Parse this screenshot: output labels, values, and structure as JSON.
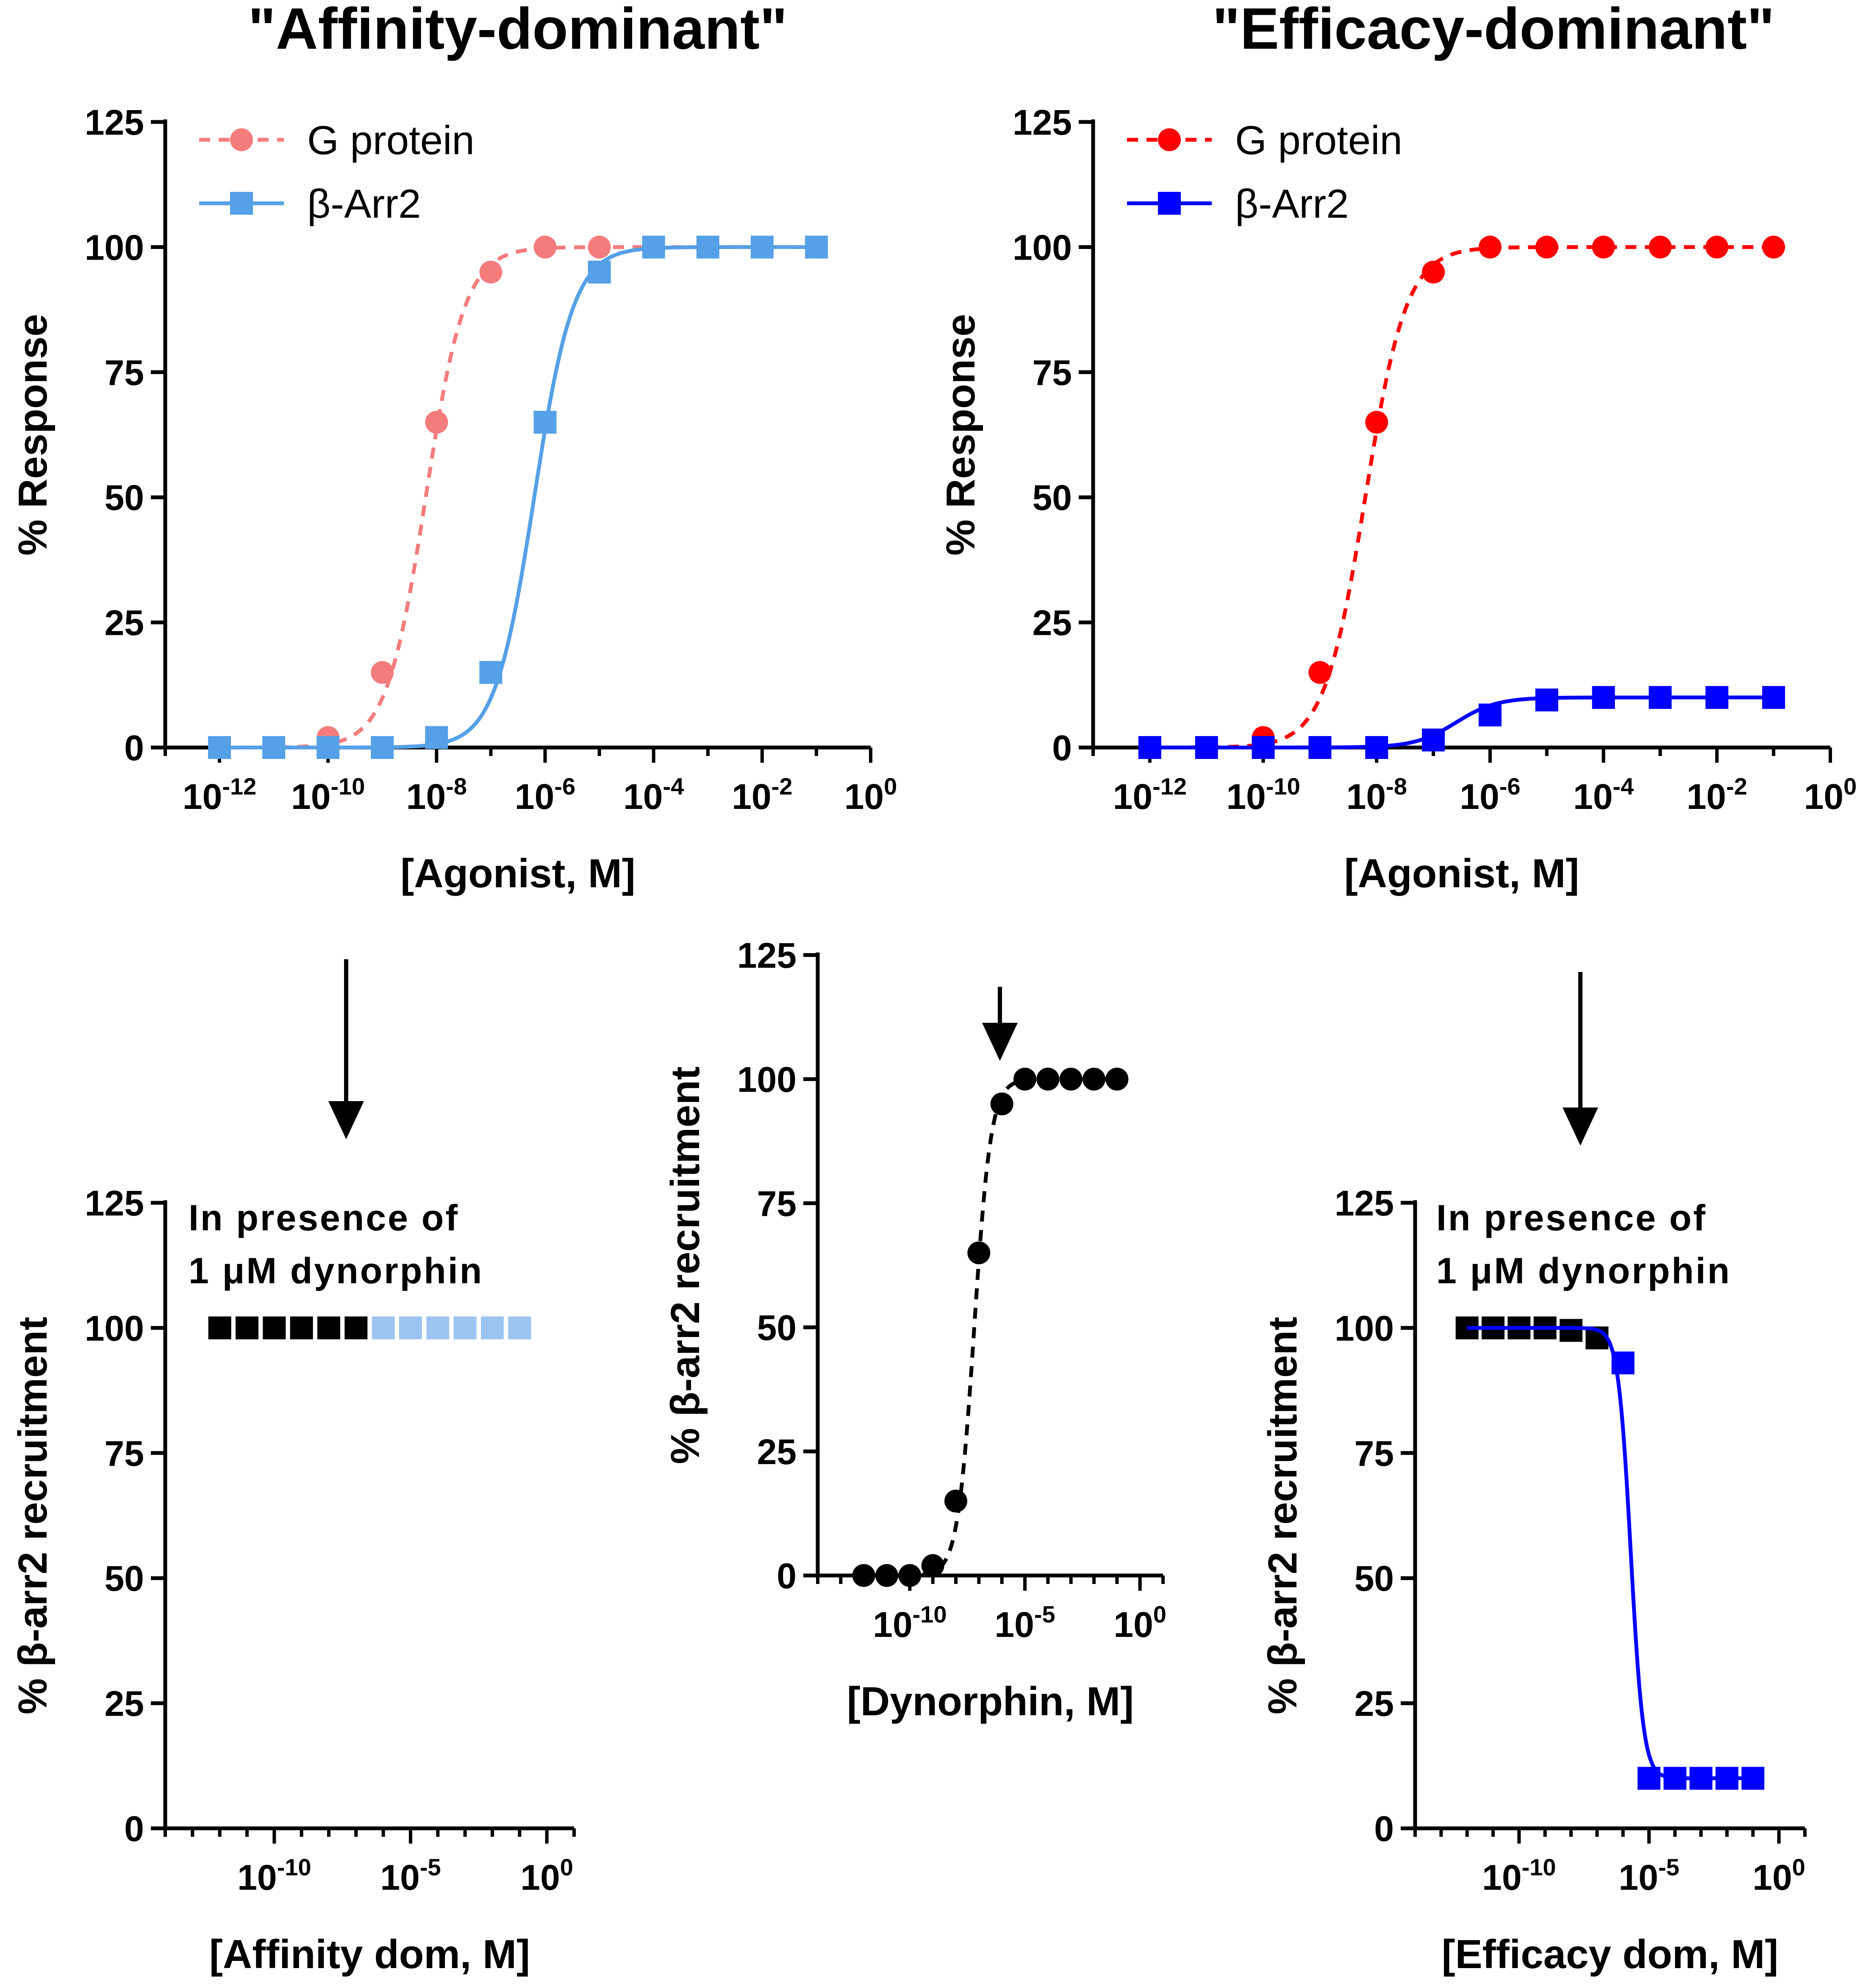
{
  "chart_data": [
    {
      "id": "affinity_top",
      "type": "line",
      "title": "\"Affinity-dominant\"",
      "xlabel": "[Agonist, M]",
      "ylabel": "% Response",
      "xscale": "log",
      "xlim": [
        -13,
        0
      ],
      "ylim": [
        0,
        125
      ],
      "yticks": [
        0,
        25,
        50,
        75,
        100,
        125
      ],
      "xticks": [
        -12,
        -10,
        -8,
        -6,
        -4,
        -2,
        0
      ],
      "xtick_labels": [
        "10-12",
        "10-10",
        "10-8",
        "10-6",
        "10-4",
        "10-2",
        "100"
      ],
      "legend": "top-left",
      "series": [
        {
          "name": "G protein",
          "marker": "circle",
          "dashed": true,
          "color": "#f47c7c",
          "logx": [
            -12,
            -11,
            -10,
            -9,
            -8,
            -7,
            -6,
            -5,
            -4,
            -3,
            -2,
            -1
          ],
          "values": [
            0,
            0,
            2,
            15,
            65,
            95,
            100,
            100,
            100,
            100,
            100,
            100
          ],
          "fit": {
            "bottom": 0,
            "top": 100,
            "logEC50": -8.2,
            "hill": 1.2
          }
        },
        {
          "name": "β-Arr2",
          "marker": "square",
          "dashed": false,
          "color": "#55a0e6",
          "logx": [
            -12,
            -11,
            -10,
            -9,
            -8,
            -7,
            -6,
            -5,
            -4,
            -3,
            -2,
            -1
          ],
          "values": [
            0,
            0,
            0,
            0,
            2,
            15,
            65,
            95,
            100,
            100,
            100,
            100
          ],
          "fit": {
            "bottom": 0,
            "top": 100,
            "logEC50": -6.2,
            "hill": 1.2
          }
        }
      ]
    },
    {
      "id": "efficacy_top",
      "type": "line",
      "title": "\"Efficacy-dominant\"",
      "xlabel": "[Agonist, M]",
      "ylabel": "% Response",
      "xscale": "log",
      "xlim": [
        -13,
        0
      ],
      "ylim": [
        0,
        125
      ],
      "yticks": [
        0,
        25,
        50,
        75,
        100,
        125
      ],
      "xticks": [
        -12,
        -10,
        -8,
        -6,
        -4,
        -2,
        0
      ],
      "xtick_labels": [
        "10-12",
        "10-10",
        "10-8",
        "10-6",
        "10-4",
        "10-2",
        "100"
      ],
      "legend": "top-left",
      "series": [
        {
          "name": "G protein",
          "marker": "circle",
          "dashed": true,
          "color": "#ff0000",
          "logx": [
            -12,
            -11,
            -10,
            -9,
            -8,
            -7,
            -6,
            -5,
            -4,
            -3,
            -2,
            -1
          ],
          "values": [
            0,
            0,
            2,
            15,
            65,
            95,
            100,
            100,
            100,
            100,
            100,
            100
          ],
          "fit": {
            "bottom": 0,
            "top": 100,
            "logEC50": -8.2,
            "hill": 1.2
          }
        },
        {
          "name": "β-Arr2",
          "marker": "square",
          "dashed": false,
          "color": "#0000ff",
          "logx": [
            -12,
            -11,
            -10,
            -9,
            -8,
            -7,
            -6,
            -5,
            -4,
            -3,
            -2,
            -1
          ],
          "values": [
            0,
            0,
            0,
            0,
            0,
            1.5,
            6.5,
            9.5,
            10,
            10,
            10,
            10
          ],
          "fit": {
            "bottom": 0,
            "top": 10,
            "logEC50": -6.6,
            "hill": 1.2
          }
        }
      ]
    },
    {
      "id": "affinity_bottom",
      "type": "scatter",
      "xlabel": "[Affinity dom, M]",
      "ylabel": "% β-arr2 recruitment",
      "annotation": [
        "In presence of",
        "1 μM dynorphin"
      ],
      "xscale": "log",
      "xlim": [
        -14,
        1
      ],
      "ylim": [
        0,
        125
      ],
      "yticks": [
        0,
        25,
        50,
        75,
        100,
        125
      ],
      "xticks": [
        -10,
        -5,
        0
      ],
      "xtick_labels": [
        "10-10",
        "10-5",
        "100"
      ],
      "series": [
        {
          "name": "black",
          "marker": "square",
          "color": "#000000",
          "logx": [
            -12,
            -11,
            -10,
            -9,
            -8,
            -7
          ],
          "values": [
            100,
            100,
            100,
            100,
            100,
            100
          ]
        },
        {
          "name": "light blue",
          "marker": "square",
          "color": "#9cc4f0",
          "logx": [
            -6,
            -5,
            -4,
            -3,
            -2,
            -1
          ],
          "values": [
            100,
            100,
            100,
            100,
            100,
            100
          ]
        }
      ]
    },
    {
      "id": "dynorphin_middle",
      "type": "line",
      "xlabel": "[Dynorphin, M]",
      "ylabel": "% β-arr2 recruitment",
      "xscale": "log",
      "xlim": [
        -14,
        1
      ],
      "ylim": [
        0,
        125
      ],
      "yticks": [
        0,
        25,
        50,
        75,
        100,
        125
      ],
      "xticks": [
        -10,
        -5,
        0
      ],
      "xtick_labels": [
        "10-10",
        "10-5",
        "100"
      ],
      "series": [
        {
          "name": "dynorphin",
          "marker": "circle",
          "dashed": true,
          "color": "#000000",
          "logx": [
            -12,
            -11,
            -10,
            -9,
            -8,
            -7,
            -6,
            -5,
            -4,
            -3,
            -2,
            -1
          ],
          "values": [
            0,
            0,
            0,
            2,
            15,
            65,
            95,
            100,
            100,
            100,
            100,
            100
          ],
          "fit": {
            "bottom": 0,
            "top": 100,
            "logEC50": -7.2,
            "hill": 1.2
          }
        }
      ]
    },
    {
      "id": "efficacy_bottom",
      "type": "line",
      "xlabel": "[Efficacy dom, M]",
      "ylabel": "% β-arr2 recruitment",
      "annotation": [
        "In presence of",
        "1 μM dynorphin"
      ],
      "xscale": "log",
      "xlim": [
        -14,
        1
      ],
      "ylim": [
        0,
        125
      ],
      "yticks": [
        0,
        25,
        50,
        75,
        100,
        125
      ],
      "xticks": [
        -10,
        -5,
        0
      ],
      "xtick_labels": [
        "10-10",
        "10-5",
        "100"
      ],
      "series": [
        {
          "name": "black",
          "marker": "square",
          "color": "#000000",
          "logx": [
            -12,
            -11,
            -10,
            -9,
            -8,
            -7
          ],
          "values": [
            100,
            100,
            100,
            100,
            99.5,
            98
          ]
        },
        {
          "name": "blue",
          "marker": "square",
          "color": "#0000ff",
          "logx": [
            -6,
            -5,
            -4,
            -3,
            -2,
            -1
          ],
          "values": [
            93,
            10,
            10,
            10,
            10,
            10
          ]
        },
        {
          "name": "fit",
          "marker": "none",
          "dashed": false,
          "color": "#0000ff",
          "fit": {
            "bottom": 10,
            "top": 100,
            "logEC50": -5.7,
            "hill": -1.8
          },
          "fit_range": [
            -12,
            -1
          ]
        }
      ]
    }
  ]
}
